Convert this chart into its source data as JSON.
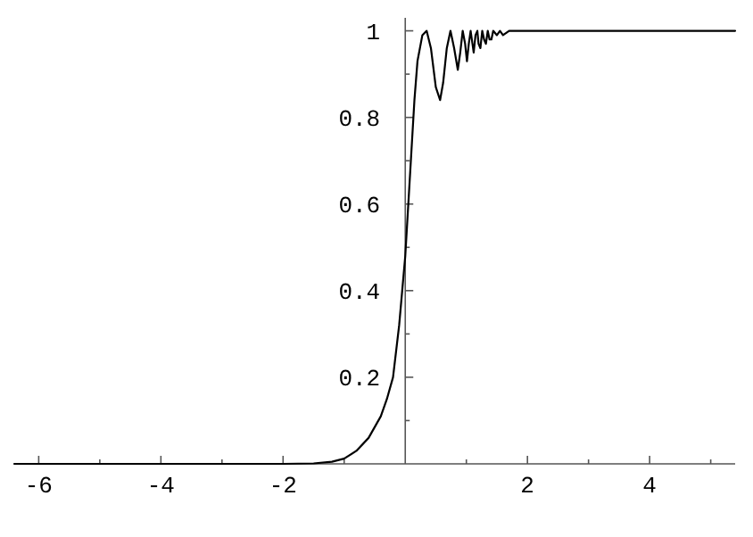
{
  "chart_data": {
    "type": "line",
    "xlim": [
      -6.4,
      5.4
    ],
    "ylim": [
      0,
      1.03
    ],
    "xticks": [
      -6,
      -4,
      -2,
      2,
      4,
      {
        "value": -5,
        "label": null
      },
      {
        "value": -3,
        "label": null
      },
      {
        "value": -1,
        "label": null
      },
      {
        "value": 1,
        "label": null
      },
      {
        "value": 3,
        "label": null
      },
      {
        "value": 5,
        "label": null
      }
    ],
    "yticks": [
      0.2,
      0.4,
      0.6,
      0.8,
      1,
      {
        "value": 0.1,
        "label": null
      },
      {
        "value": 0.3,
        "label": null
      },
      {
        "value": 0.5,
        "label": null
      },
      {
        "value": 0.7,
        "label": null
      },
      {
        "value": 0.9,
        "label": null
      }
    ],
    "grid": false,
    "marker": "none",
    "line_style": "solid",
    "series": [
      {
        "color": "#000000",
        "x": [
          -6.4,
          -2,
          -1.5,
          -1.2,
          -1.0,
          -0.8,
          -0.6,
          -0.4,
          -0.3,
          -0.2,
          -0.1,
          -0.05,
          0,
          0.05,
          0.1,
          0.15,
          0.2,
          0.28,
          0.35,
          0.42,
          0.5,
          0.57,
          0.62,
          0.68,
          0.74,
          0.8,
          0.86,
          0.9,
          0.94,
          0.98,
          1.01,
          1.04,
          1.07,
          1.1,
          1.12,
          1.15,
          1.18,
          1.2,
          1.23,
          1.26,
          1.29,
          1.32,
          1.35,
          1.38,
          1.41,
          1.44,
          1.5,
          1.55,
          1.6,
          1.7,
          2,
          5.4
        ],
        "values": [
          0,
          0,
          0.001,
          0.005,
          0.012,
          0.03,
          0.06,
          0.11,
          0.15,
          0.2,
          0.32,
          0.4,
          0.48,
          0.6,
          0.72,
          0.84,
          0.93,
          0.99,
          1.0,
          0.96,
          0.87,
          0.84,
          0.88,
          0.96,
          1.0,
          0.96,
          0.91,
          0.95,
          1.0,
          0.97,
          0.93,
          0.97,
          1.0,
          0.97,
          0.95,
          0.99,
          1.0,
          0.97,
          0.96,
          1.0,
          0.98,
          0.97,
          1.0,
          0.98,
          0.98,
          1.0,
          0.99,
          1.0,
          0.99,
          1.0,
          1.0,
          1.0
        ]
      }
    ]
  }
}
